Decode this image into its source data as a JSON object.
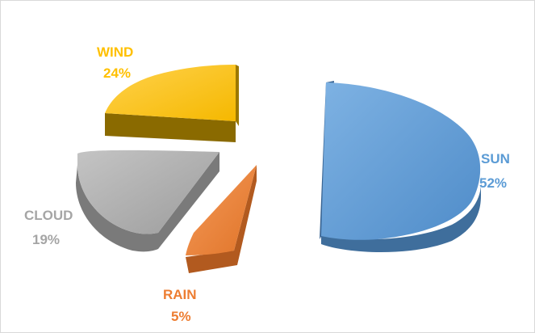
{
  "chart_data": {
    "type": "pie",
    "style": "3d-exploded",
    "title": "",
    "legend": "none",
    "slices": [
      {
        "name": "SUN",
        "value": 52,
        "label": "52%",
        "color": "#5b9bd5",
        "side_color": "#3f6e9c"
      },
      {
        "name": "RAIN",
        "value": 5,
        "label": "5%",
        "color": "#ed7d31",
        "side_color": "#b25a1f"
      },
      {
        "name": "CLOUD",
        "value": 19,
        "label": "19%",
        "color": "#a5a5a5",
        "side_color": "#7a7a7a"
      },
      {
        "name": "WIND",
        "value": 24,
        "label": "24%",
        "color": "#ffc000",
        "side_color": "#8a6a00"
      }
    ]
  }
}
